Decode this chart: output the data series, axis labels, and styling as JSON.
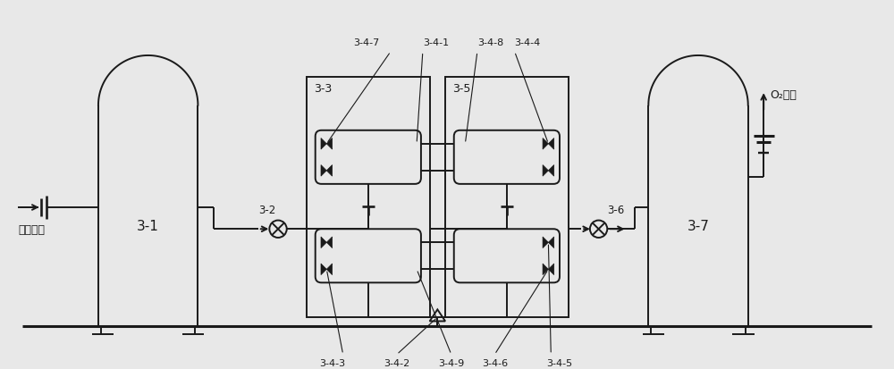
{
  "bg_color": "#e8e8e8",
  "line_color": "#1a1a1a",
  "lw": 1.4,
  "labels": {
    "31": "3-1",
    "32": "3-2",
    "33": "3-3",
    "35": "3-5",
    "36": "3-6",
    "37": "3-7",
    "341": "3-4-1",
    "342": "3-4-2",
    "343": "3-4-3",
    "344": "3-4-4",
    "345": "3-4-5",
    "346": "3-4-6",
    "347": "3-4-7",
    "348": "3-4-8",
    "349": "3-4-9",
    "input": "压缩空气",
    "output": "O₂氧气"
  }
}
